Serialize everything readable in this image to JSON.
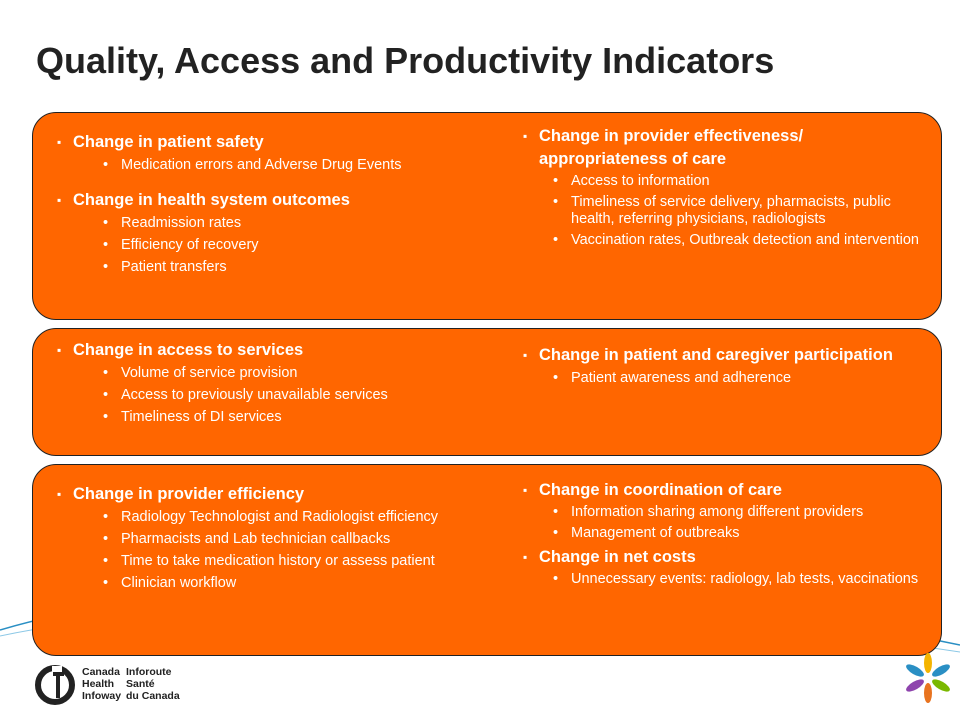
{
  "title": "Quality, Access and Productivity Indicators",
  "panels": [
    {
      "left": [
        {
          "heading": "Change in patient safety",
          "items": [
            "Medication errors and Adverse Drug Events"
          ]
        },
        {
          "heading": "Change in health system outcomes",
          "items": [
            "Readmission rates",
            "Efficiency of recovery",
            "Patient transfers"
          ]
        }
      ],
      "right": [
        {
          "heading": "Change in provider effectiveness/ appropriateness of care",
          "items": [
            "Access to information",
            "Timeliness of service delivery, pharmacists, public health, referring physicians, radiologists",
            "Vaccination rates,  Outbreak detection and intervention"
          ]
        }
      ]
    },
    {
      "left": [
        {
          "heading": "Change in access to services",
          "items": [
            "Volume of service provision",
            "Access to previously unavailable services",
            "Timeliness of DI services"
          ]
        }
      ],
      "right": [
        {
          "heading": "Change in patient and caregiver participation",
          "items": [
            "Patient awareness and adherence"
          ]
        }
      ]
    },
    {
      "left": [
        {
          "heading": "Change in provider efficiency",
          "items": [
            "Radiology Technologist and Radiologist efficiency",
            "Pharmacists and Lab technician callbacks",
            "Time to take medication history or assess patient",
            "Clinician workflow"
          ]
        }
      ],
      "right": [
        {
          "heading": "Change in coordination of care",
          "items": [
            "Information sharing among different providers",
            "Management of outbreaks"
          ]
        },
        {
          "heading": "Change in net costs",
          "items": [
            "Unnecessary events: radiology, lab tests, vaccinations"
          ]
        }
      ]
    }
  ],
  "logo": {
    "en": [
      "Canada",
      "Health",
      "Infoway"
    ],
    "fr": [
      "Inforoute",
      "Santé",
      "du Canada"
    ]
  },
  "colors": {
    "panel": "#ff6600",
    "swoosh": "#2a8fc4"
  }
}
